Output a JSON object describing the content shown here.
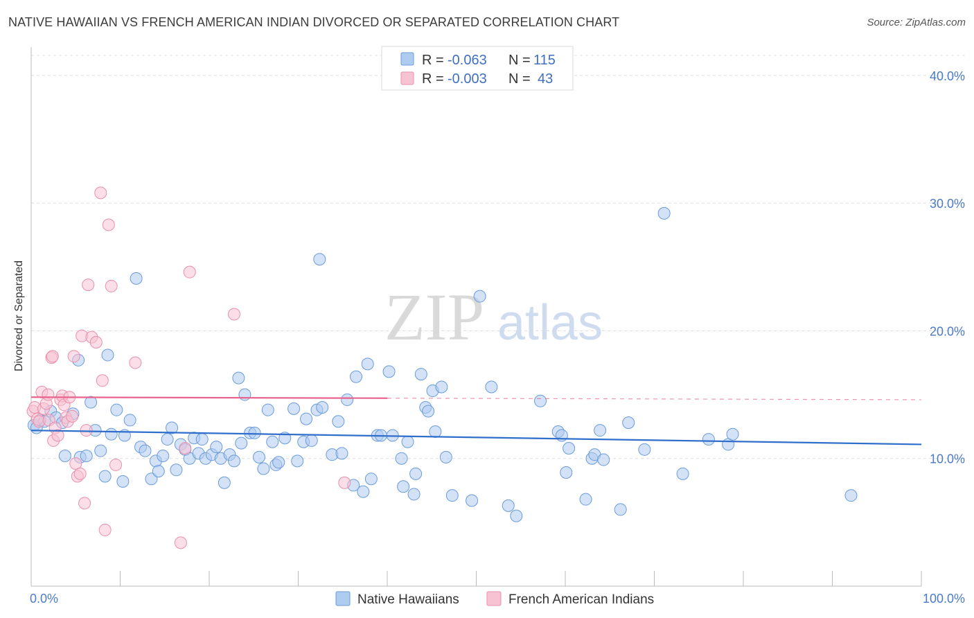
{
  "header": {
    "title": "NATIVE HAWAIIAN VS FRENCH AMERICAN INDIAN DIVORCED OR SEPARATED CORRELATION CHART",
    "source": "Source: ZipAtlas.com"
  },
  "watermark": {
    "zip": "ZIP",
    "atlas": "atlas"
  },
  "legend": {
    "r_label": "R =",
    "n_label": "N =",
    "rows": [
      {
        "r": "-0.063",
        "n": "115",
        "color": "#8fb4e8"
      },
      {
        "r": "-0.003",
        "n": "43",
        "color": "#f2a7bf"
      }
    ]
  },
  "colors": {
    "blue_fill": "#aecbf0",
    "blue_stroke": "#6a9bdc",
    "blue_line": "#2f6fcb",
    "pink_fill": "#f7c3d3",
    "pink_stroke": "#ea8fab",
    "pink_line": "#e8648f"
  },
  "chart_data": {
    "type": "scatter",
    "title": "NATIVE HAWAIIAN VS FRENCH AMERICAN INDIAN DIVORCED OR SEPARATED CORRELATION CHART",
    "xlabel": "",
    "ylabel": "Divorced or Separated",
    "xlim": [
      0,
      100
    ],
    "ylim": [
      0,
      42
    ],
    "x_tick_labels": [
      "0.0%",
      "100.0%"
    ],
    "y_ticks": [
      10,
      20,
      30,
      40
    ],
    "y_tick_labels": [
      "10.0%",
      "20.0%",
      "30.0%",
      "40.0%"
    ],
    "grid": true,
    "legend_position": "top-center",
    "series": [
      {
        "name": "Native Hawaiians",
        "r": -0.063,
        "n": 115,
        "trend": {
          "x0": 0,
          "y0": 12.2,
          "x1": 100,
          "y1": 11.1,
          "dashed_from": null
        },
        "points": [
          [
            0.3,
            12.6
          ],
          [
            0.6,
            12.4
          ],
          [
            1.0,
            13.0
          ],
          [
            1.5,
            12.9
          ],
          [
            2.2,
            13.7
          ],
          [
            2.8,
            13.2
          ],
          [
            3.5,
            12.8
          ],
          [
            3.8,
            10.2
          ],
          [
            4.7,
            13.5
          ],
          [
            5.3,
            17.7
          ],
          [
            5.5,
            10.1
          ],
          [
            6.2,
            10.2
          ],
          [
            6.7,
            14.4
          ],
          [
            7.2,
            12.2
          ],
          [
            7.8,
            10.6
          ],
          [
            8.3,
            8.6
          ],
          [
            8.6,
            18.1
          ],
          [
            9.0,
            11.9
          ],
          [
            9.6,
            13.8
          ],
          [
            10.3,
            8.2
          ],
          [
            10.5,
            11.8
          ],
          [
            11.1,
            13.0
          ],
          [
            11.8,
            24.1
          ],
          [
            12.3,
            10.9
          ],
          [
            12.8,
            10.6
          ],
          [
            13.5,
            8.4
          ],
          [
            14.0,
            9.8
          ],
          [
            14.3,
            9.0
          ],
          [
            14.8,
            10.2
          ],
          [
            15.3,
            11.5
          ],
          [
            15.8,
            12.4
          ],
          [
            16.3,
            9.1
          ],
          [
            16.8,
            11.1
          ],
          [
            17.3,
            10.7
          ],
          [
            17.8,
            10.0
          ],
          [
            18.3,
            11.6
          ],
          [
            18.8,
            10.4
          ],
          [
            19.2,
            11.5
          ],
          [
            19.6,
            10.0
          ],
          [
            20.3,
            10.3
          ],
          [
            20.8,
            10.9
          ],
          [
            21.3,
            10.0
          ],
          [
            21.7,
            8.1
          ],
          [
            22.3,
            10.3
          ],
          [
            22.8,
            9.8
          ],
          [
            23.3,
            16.3
          ],
          [
            23.6,
            11.2
          ],
          [
            24.0,
            15.0
          ],
          [
            24.6,
            12.0
          ],
          [
            25.1,
            12.0
          ],
          [
            25.6,
            10.1
          ],
          [
            26.1,
            9.2
          ],
          [
            26.6,
            13.8
          ],
          [
            27.1,
            11.3
          ],
          [
            27.5,
            9.5
          ],
          [
            27.8,
            9.7
          ],
          [
            28.5,
            11.6
          ],
          [
            29.5,
            13.9
          ],
          [
            29.9,
            9.8
          ],
          [
            30.6,
            11.3
          ],
          [
            30.9,
            13.1
          ],
          [
            31.5,
            11.4
          ],
          [
            32.1,
            13.8
          ],
          [
            32.4,
            25.6
          ],
          [
            32.7,
            14.0
          ],
          [
            33.8,
            10.3
          ],
          [
            34.5,
            12.9
          ],
          [
            34.9,
            10.4
          ],
          [
            35.5,
            14.6
          ],
          [
            36.2,
            7.9
          ],
          [
            36.5,
            16.4
          ],
          [
            37.3,
            7.4
          ],
          [
            37.8,
            17.4
          ],
          [
            38.2,
            8.4
          ],
          [
            38.9,
            11.8
          ],
          [
            39.3,
            11.8
          ],
          [
            40.2,
            16.8
          ],
          [
            40.6,
            11.8
          ],
          [
            41.6,
            10.0
          ],
          [
            41.8,
            7.8
          ],
          [
            42.3,
            11.3
          ],
          [
            43.0,
            7.2
          ],
          [
            43.2,
            8.8
          ],
          [
            43.8,
            16.6
          ],
          [
            44.3,
            14.0
          ],
          [
            44.6,
            13.7
          ],
          [
            45.1,
            15.3
          ],
          [
            45.4,
            12.1
          ],
          [
            46.1,
            15.6
          ],
          [
            46.6,
            10.1
          ],
          [
            47.3,
            7.1
          ],
          [
            49.5,
            6.7
          ],
          [
            50.4,
            22.7
          ],
          [
            51.7,
            15.6
          ],
          [
            53.6,
            6.3
          ],
          [
            54.5,
            5.5
          ],
          [
            57.2,
            14.5
          ],
          [
            59.2,
            12.1
          ],
          [
            59.6,
            11.8
          ],
          [
            60.1,
            8.9
          ],
          [
            60.4,
            10.8
          ],
          [
            62.3,
            6.8
          ],
          [
            63.0,
            10.0
          ],
          [
            63.3,
            10.3
          ],
          [
            63.9,
            12.2
          ],
          [
            64.3,
            9.9
          ],
          [
            66.2,
            6.0
          ],
          [
            67.1,
            12.8
          ],
          [
            68.9,
            10.7
          ],
          [
            71.1,
            29.2
          ],
          [
            73.2,
            8.8
          ],
          [
            76.1,
            11.5
          ],
          [
            78.3,
            11.1
          ],
          [
            78.8,
            11.9
          ],
          [
            92.1,
            7.1
          ]
        ]
      },
      {
        "name": "French American Indians",
        "r": -0.003,
        "n": 43,
        "trend": {
          "x0": 0,
          "y0": 14.8,
          "x1": 100,
          "y1": 14.6,
          "dashed_from": 40
        },
        "points": [
          [
            0.2,
            13.7
          ],
          [
            0.4,
            14.0
          ],
          [
            0.7,
            13.1
          ],
          [
            0.9,
            12.9
          ],
          [
            1.2,
            15.2
          ],
          [
            1.4,
            13.9
          ],
          [
            1.7,
            14.3
          ],
          [
            1.9,
            15.0
          ],
          [
            2.0,
            13.0
          ],
          [
            2.3,
            17.9
          ],
          [
            2.4,
            18.0
          ],
          [
            2.5,
            11.4
          ],
          [
            2.7,
            12.4
          ],
          [
            3.0,
            11.8
          ],
          [
            3.3,
            14.6
          ],
          [
            3.5,
            14.9
          ],
          [
            3.7,
            14.2
          ],
          [
            3.9,
            13.2
          ],
          [
            4.1,
            12.9
          ],
          [
            4.3,
            14.8
          ],
          [
            4.6,
            13.3
          ],
          [
            4.8,
            18.0
          ],
          [
            5.0,
            9.6
          ],
          [
            5.2,
            8.6
          ],
          [
            5.5,
            8.8
          ],
          [
            5.7,
            19.6
          ],
          [
            6.0,
            6.5
          ],
          [
            6.2,
            12.2
          ],
          [
            6.4,
            23.6
          ],
          [
            6.8,
            19.5
          ],
          [
            7.3,
            19.1
          ],
          [
            7.8,
            30.8
          ],
          [
            8.0,
            16.1
          ],
          [
            8.3,
            4.4
          ],
          [
            8.7,
            28.3
          ],
          [
            9.0,
            23.5
          ],
          [
            9.5,
            9.5
          ],
          [
            11.7,
            17.5
          ],
          [
            16.8,
            3.4
          ],
          [
            17.3,
            10.8
          ],
          [
            17.8,
            24.6
          ],
          [
            22.8,
            21.3
          ],
          [
            35.2,
            8.1
          ]
        ]
      }
    ]
  },
  "bottom_legend": [
    {
      "label": "Native Hawaiians",
      "color": "#aecbf0"
    },
    {
      "label": "French American Indians",
      "color": "#f7c3d3"
    }
  ]
}
